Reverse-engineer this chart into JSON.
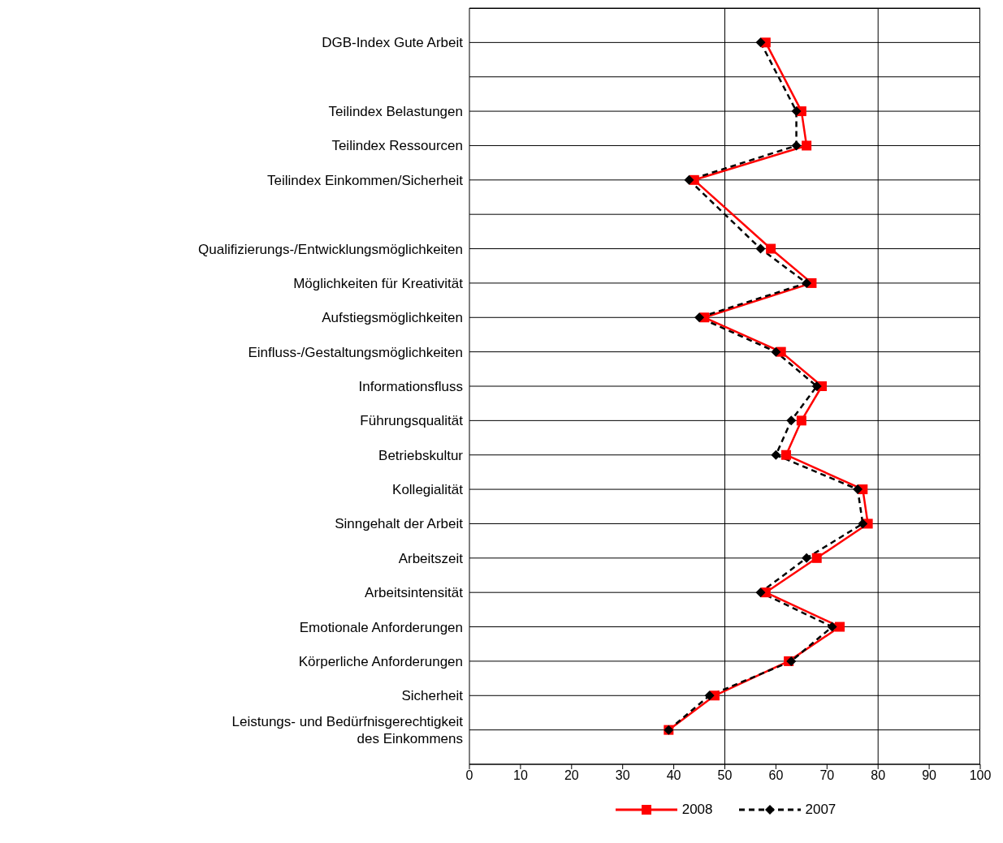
{
  "chart_data": {
    "type": "line",
    "categories": [
      "DGB-Index Gute Arbeit",
      null,
      "Teilindex Belastungen",
      "Teilindex Ressourcen",
      "Teilindex Einkommen/Sicherheit",
      null,
      "Qualifizierungs-/Entwicklungsmöglichkeiten",
      "Möglichkeiten für Kreativität",
      "Aufstiegsmöglichkeiten",
      "Einfluss-/Gestaltungsmöglichkeiten",
      "Informationsfluss",
      "Führungsqualität",
      "Betriebskultur",
      "Kollegialität",
      "Sinngehalt der Arbeit",
      "Arbeitszeit",
      "Arbeitsintensität",
      "Emotionale Anforderungen",
      "Körperliche Anforderungen",
      "Sicherheit",
      "Leistungs- und Bedürfnisgerechtigkeit\ndes Einkommens"
    ],
    "series": [
      {
        "name": "2008",
        "color": "#ff0000",
        "marker": "square",
        "line_style": "solid",
        "values": [
          58,
          null,
          65,
          66,
          44,
          null,
          59,
          67,
          46,
          61,
          69,
          65,
          62,
          77,
          78,
          68,
          58,
          72.5,
          62.5,
          48,
          39
        ]
      },
      {
        "name": "2007",
        "color": "#000000",
        "marker": "diamond",
        "line_style": "dashed",
        "values": [
          57,
          null,
          64,
          64,
          43,
          null,
          57,
          66,
          45,
          60,
          68,
          63,
          60,
          76,
          77,
          66,
          57,
          71,
          63,
          47,
          39
        ]
      }
    ],
    "xlim": [
      0,
      100
    ],
    "xticks": [
      0,
      10,
      20,
      30,
      40,
      50,
      60,
      70,
      80,
      90,
      100
    ],
    "ref_lines": [
      {
        "axis": "x",
        "value": 50,
        "color": "#000000"
      },
      {
        "axis": "x",
        "value": 80,
        "color": "#000000"
      }
    ],
    "orientation": "horizontal",
    "grid": "y",
    "legend": "bottom"
  }
}
